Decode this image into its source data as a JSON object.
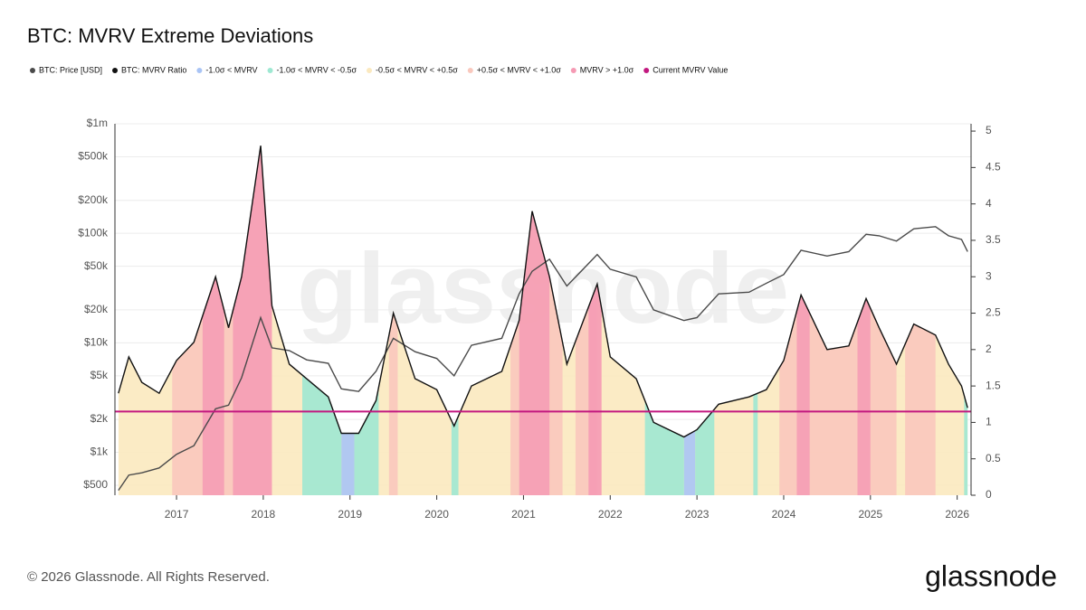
{
  "chart_data": {
    "type": "line",
    "title": "BTC: MVRV Extreme Deviations",
    "watermark": "glassnode",
    "footer": "© 2026 Glassnode. All Rights Reserved.",
    "brand": "glassnode",
    "x": [
      2016.33,
      2016.45,
      2016.6,
      2016.8,
      2017.0,
      2017.2,
      2017.45,
      2017.6,
      2017.75,
      2017.97,
      2018.1,
      2018.3,
      2018.5,
      2018.75,
      2018.9,
      2019.1,
      2019.3,
      2019.5,
      2019.75,
      2020.0,
      2020.2,
      2020.4,
      2020.75,
      2020.95,
      2021.1,
      2021.3,
      2021.5,
      2021.85,
      2022.0,
      2022.3,
      2022.5,
      2022.85,
      2023.0,
      2023.25,
      2023.6,
      2023.8,
      2024.0,
      2024.2,
      2024.5,
      2024.75,
      2024.95,
      2025.1,
      2025.3,
      2025.5,
      2025.75,
      2025.9,
      2026.05,
      2026.12
    ],
    "series": [
      {
        "name": "BTC: Price [USD]",
        "color": "#4a4a4a",
        "values": [
          450,
          620,
          650,
          720,
          960,
          1150,
          2500,
          2700,
          4800,
          17000,
          9000,
          8500,
          7000,
          6500,
          3800,
          3600,
          5500,
          11000,
          8300,
          7200,
          5000,
          9500,
          11000,
          28000,
          45000,
          58000,
          33000,
          64000,
          47000,
          40000,
          20000,
          16000,
          17000,
          28000,
          29000,
          35000,
          42000,
          70000,
          62000,
          68000,
          98000,
          95000,
          85000,
          110000,
          115000,
          95000,
          88000,
          68000
        ]
      },
      {
        "name": "BTC: MVRV Ratio",
        "color": "#111111",
        "axis": "y2",
        "values": [
          1.4,
          1.9,
          1.55,
          1.4,
          1.85,
          2.1,
          3.0,
          2.3,
          3.0,
          4.8,
          2.6,
          1.8,
          1.6,
          1.35,
          0.85,
          0.85,
          1.3,
          2.5,
          1.6,
          1.45,
          0.95,
          1.5,
          1.7,
          2.4,
          3.9,
          3.0,
          1.8,
          2.9,
          1.9,
          1.6,
          1.0,
          0.8,
          0.9,
          1.25,
          1.35,
          1.45,
          1.85,
          2.75,
          2.0,
          2.05,
          2.7,
          2.3,
          1.8,
          2.35,
          2.2,
          1.8,
          1.5,
          1.2
        ]
      }
    ],
    "zones": [
      {
        "name": "-1.0σ < MVRV",
        "color": "#a9c4f5",
        "ranges": [
          [
            2018.9,
            2019.05
          ],
          [
            2022.85,
            2022.98
          ]
        ]
      },
      {
        "name": "-1.0σ < MVRV < -0.5σ",
        "color": "#9ee8d2",
        "ranges": [
          [
            2018.45,
            2018.9
          ],
          [
            2019.05,
            2019.33
          ],
          [
            2020.17,
            2020.25
          ],
          [
            2022.4,
            2022.85
          ],
          [
            2022.98,
            2023.2
          ],
          [
            2023.65,
            2023.7
          ],
          [
            2026.08,
            2026.14
          ]
        ]
      },
      {
        "name": "-0.5σ < MVRV < +0.5σ",
        "color": "#fbe9bf",
        "ranges": [
          [
            2016.33,
            2026.14
          ]
        ]
      },
      {
        "name": "+0.5σ < MVRV < +1.0σ",
        "color": "#f9c8bd",
        "ranges": [
          [
            2016.95,
            2017.3
          ],
          [
            2017.55,
            2017.65
          ],
          [
            2019.45,
            2019.55
          ],
          [
            2020.85,
            2020.95
          ],
          [
            2021.3,
            2021.45
          ],
          [
            2021.6,
            2021.85
          ],
          [
            2023.95,
            2024.15
          ],
          [
            2024.3,
            2024.85
          ],
          [
            2025.0,
            2025.3
          ],
          [
            2025.4,
            2025.75
          ]
        ]
      },
      {
        "name": "MVRV > +1.0σ",
        "color": "#f59ab4",
        "ranges": [
          [
            2017.3,
            2017.55
          ],
          [
            2017.65,
            2018.1
          ],
          [
            2020.95,
            2021.3
          ],
          [
            2021.75,
            2021.9
          ],
          [
            2024.15,
            2024.3
          ],
          [
            2024.85,
            2025.0
          ]
        ]
      }
    ],
    "current": {
      "name": "Current MVRV Value",
      "color": "#c2187f",
      "value": 1.15
    },
    "xlim": [
      2016.29,
      2026.16
    ],
    "xticks": [
      2017,
      2018,
      2019,
      2020,
      2021,
      2022,
      2023,
      2024,
      2025,
      2026
    ],
    "ylog": true,
    "ylim": [
      406,
      1000000
    ],
    "yticks": [
      {
        "value": 500,
        "label": "$500"
      },
      {
        "value": 1000,
        "label": "$1k"
      },
      {
        "value": 2000,
        "label": "$2k"
      },
      {
        "value": 5000,
        "label": "$5k"
      },
      {
        "value": 10000,
        "label": "$10k"
      },
      {
        "value": 20000,
        "label": "$20k"
      },
      {
        "value": 50000,
        "label": "$50k"
      },
      {
        "value": 100000,
        "label": "$100k"
      },
      {
        "value": 200000,
        "label": "$200k"
      },
      {
        "value": 500000,
        "label": "$500k"
      },
      {
        "value": 1000000,
        "label": "$1m"
      }
    ],
    "y2lim": [
      0,
      5.1
    ],
    "y2ticks": [
      0,
      0.5,
      1,
      1.5,
      2,
      2.5,
      3,
      3.5,
      4,
      4.5,
      5
    ],
    "grid": true
  }
}
